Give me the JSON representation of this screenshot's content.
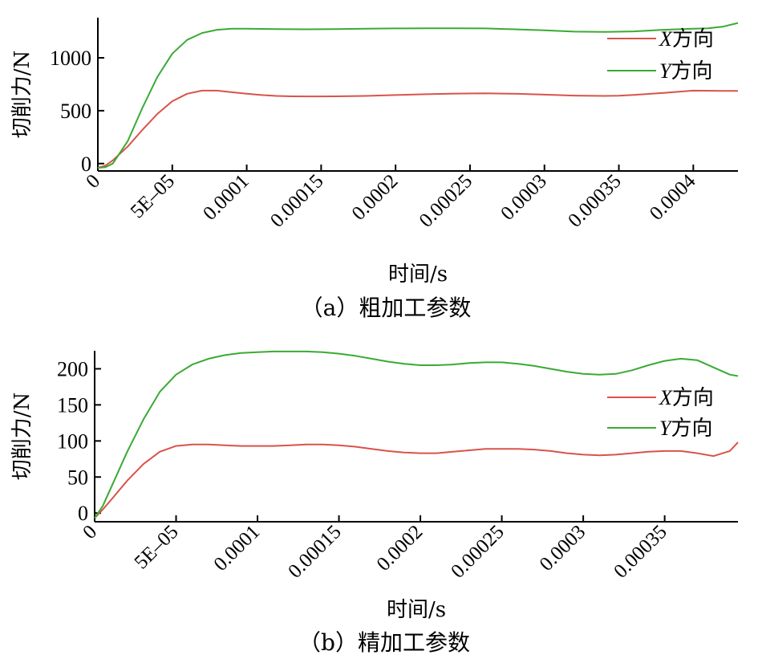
{
  "chart_data": [
    {
      "type": "line",
      "caption": "（a）粗加工参数",
      "xlabel": "时间/s",
      "ylabel": "切削力/N",
      "xlim": [
        0,
        0.00043
      ],
      "ylim": [
        -70,
        1380
      ],
      "x_ticks": [
        {
          "value": 0,
          "label": "0"
        },
        {
          "value": 5e-05,
          "label": "5E–05"
        },
        {
          "value": 0.0001,
          "label": "0.0001"
        },
        {
          "value": 0.00015,
          "label": "0.00015"
        },
        {
          "value": 0.0002,
          "label": "0.0002"
        },
        {
          "value": 0.00025,
          "label": "0.00025"
        },
        {
          "value": 0.0003,
          "label": "0.0003"
        },
        {
          "value": 0.00035,
          "label": "0.00035"
        },
        {
          "value": 0.0004,
          "label": "0.0004"
        }
      ],
      "y_ticks": [
        {
          "value": 0,
          "label": "0"
        },
        {
          "value": 500,
          "label": "500"
        },
        {
          "value": 1000,
          "label": "1000"
        }
      ],
      "legend": {
        "position": "top-right"
      },
      "series": [
        {
          "name": "X方向",
          "var": "X",
          "suffix": "方向",
          "color": "#d9534a",
          "x": [
            0,
            5e-06,
            1e-05,
            2e-05,
            3e-05,
            4e-05,
            5e-05,
            6e-05,
            7e-05,
            8e-05,
            9e-05,
            0.0001,
            0.00011,
            0.00012,
            0.00013,
            0.00014,
            0.00015,
            0.00016,
            0.00017,
            0.00018,
            0.0002,
            0.00022,
            0.00024,
            0.00026,
            0.00028,
            0.0003,
            0.00032,
            0.00034,
            0.00035,
            0.00036,
            0.00038,
            0.0004,
            0.00042,
            0.00043
          ],
          "y": [
            -40,
            -20,
            30,
            160,
            320,
            470,
            590,
            660,
            690,
            690,
            675,
            660,
            648,
            640,
            636,
            635,
            635,
            636,
            638,
            640,
            648,
            656,
            662,
            665,
            660,
            652,
            643,
            640,
            642,
            650,
            668,
            690,
            688,
            688
          ]
        },
        {
          "name": "Y方向",
          "var": "Y",
          "suffix": "方向",
          "color": "#3aaa35",
          "x": [
            0,
            5e-06,
            1e-05,
            2e-05,
            3e-05,
            4e-05,
            5e-05,
            6e-05,
            7e-05,
            8e-05,
            9e-05,
            0.0001,
            0.00012,
            0.00014,
            0.00016,
            0.00018,
            0.0002,
            0.00022,
            0.00024,
            0.00026,
            0.00028,
            0.0003,
            0.00032,
            0.00034,
            0.00036,
            0.00038,
            0.0004,
            0.00041,
            0.00042,
            0.00043
          ],
          "y": [
            -40,
            -35,
            0,
            210,
            530,
            820,
            1040,
            1170,
            1235,
            1265,
            1275,
            1275,
            1272,
            1270,
            1272,
            1275,
            1278,
            1280,
            1280,
            1278,
            1270,
            1260,
            1248,
            1245,
            1250,
            1265,
            1275,
            1280,
            1295,
            1330
          ]
        }
      ]
    },
    {
      "type": "line",
      "caption": "（b）精加工参数",
      "xlabel": "时间/s",
      "ylabel": "切削力/N",
      "xlim": [
        0,
        0.000395
      ],
      "ylim": [
        -12,
        225
      ],
      "x_ticks": [
        {
          "value": 0,
          "label": "0"
        },
        {
          "value": 5e-05,
          "label": "5E–05"
        },
        {
          "value": 0.0001,
          "label": "0.0001"
        },
        {
          "value": 0.00015,
          "label": "0.00015"
        },
        {
          "value": 0.0002,
          "label": "0.0002"
        },
        {
          "value": 0.00025,
          "label": "0.00025"
        },
        {
          "value": 0.0003,
          "label": "0.0003"
        },
        {
          "value": 0.00035,
          "label": "0.00035"
        }
      ],
      "y_ticks": [
        {
          "value": 0,
          "label": "0"
        },
        {
          "value": 50,
          "label": "50"
        },
        {
          "value": 100,
          "label": "100"
        },
        {
          "value": 150,
          "label": "150"
        },
        {
          "value": 200,
          "label": "200"
        }
      ],
      "legend": {
        "position": "right"
      },
      "series": [
        {
          "name": "X方向",
          "var": "X",
          "suffix": "方向",
          "color": "#d9534a",
          "x": [
            0,
            5e-06,
            1e-05,
            2e-05,
            3e-05,
            4e-05,
            5e-05,
            6e-05,
            7e-05,
            8e-05,
            9e-05,
            0.0001,
            0.00011,
            0.00012,
            0.00013,
            0.00014,
            0.00015,
            0.00016,
            0.00017,
            0.00018,
            0.00019,
            0.0002,
            0.00021,
            0.00022,
            0.00023,
            0.00024,
            0.00025,
            0.00026,
            0.00027,
            0.00028,
            0.00029,
            0.0003,
            0.00031,
            0.00032,
            0.00033,
            0.00034,
            0.00035,
            0.00036,
            0.00037,
            0.00038,
            0.00039,
            0.000395
          ],
          "y": [
            -7,
            5,
            18,
            45,
            68,
            85,
            93,
            95,
            95,
            94,
            93,
            93,
            93,
            94,
            95,
            95,
            94,
            92,
            89,
            86,
            84,
            83,
            83,
            85,
            87,
            89,
            89,
            89,
            88,
            86,
            83,
            81,
            80,
            81,
            83,
            85,
            86,
            86,
            83,
            79,
            86,
            98
          ]
        },
        {
          "name": "Y方向",
          "var": "Y",
          "suffix": "方向",
          "color": "#3aaa35",
          "x": [
            0,
            5e-06,
            1e-05,
            2e-05,
            3e-05,
            4e-05,
            5e-05,
            6e-05,
            7e-05,
            8e-05,
            9e-05,
            0.0001,
            0.00011,
            0.00012,
            0.00013,
            0.00014,
            0.00015,
            0.00016,
            0.00017,
            0.00018,
            0.00019,
            0.0002,
            0.00021,
            0.00022,
            0.00023,
            0.00024,
            0.00025,
            0.00026,
            0.00027,
            0.00028,
            0.00029,
            0.0003,
            0.00031,
            0.00032,
            0.00033,
            0.00034,
            0.00035,
            0.00036,
            0.00037,
            0.00038,
            0.00039,
            0.000395
          ],
          "y": [
            -7,
            10,
            35,
            85,
            130,
            168,
            192,
            206,
            214,
            219,
            222,
            223,
            224,
            224,
            224,
            223,
            221,
            218,
            214,
            210,
            207,
            205,
            205,
            206,
            208,
            209,
            209,
            207,
            204,
            200,
            196,
            193,
            192,
            193,
            198,
            205,
            211,
            214,
            212,
            202,
            192,
            190
          ]
        }
      ]
    }
  ]
}
